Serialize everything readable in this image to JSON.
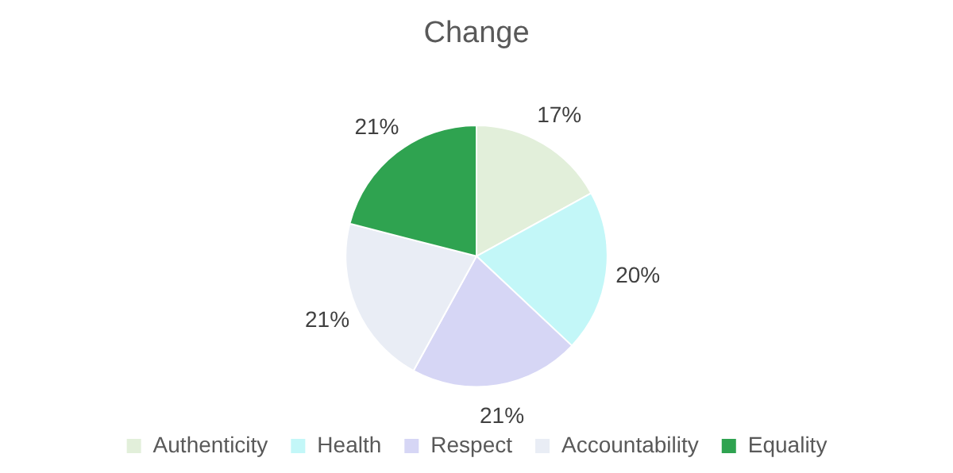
{
  "chart_data": {
    "type": "pie",
    "title": "Change",
    "categories": [
      "Authenticity",
      "Health",
      "Respect",
      "Accountability",
      "Equality"
    ],
    "values": [
      17,
      20,
      21,
      21,
      21
    ],
    "value_labels": [
      "17%",
      "20%",
      "21%",
      "21%",
      "21%"
    ],
    "colors": [
      "#e2efda",
      "#c3f7f8",
      "#d6d6f5",
      "#e9edf5",
      "#2fa350"
    ],
    "legend": "bottom"
  }
}
